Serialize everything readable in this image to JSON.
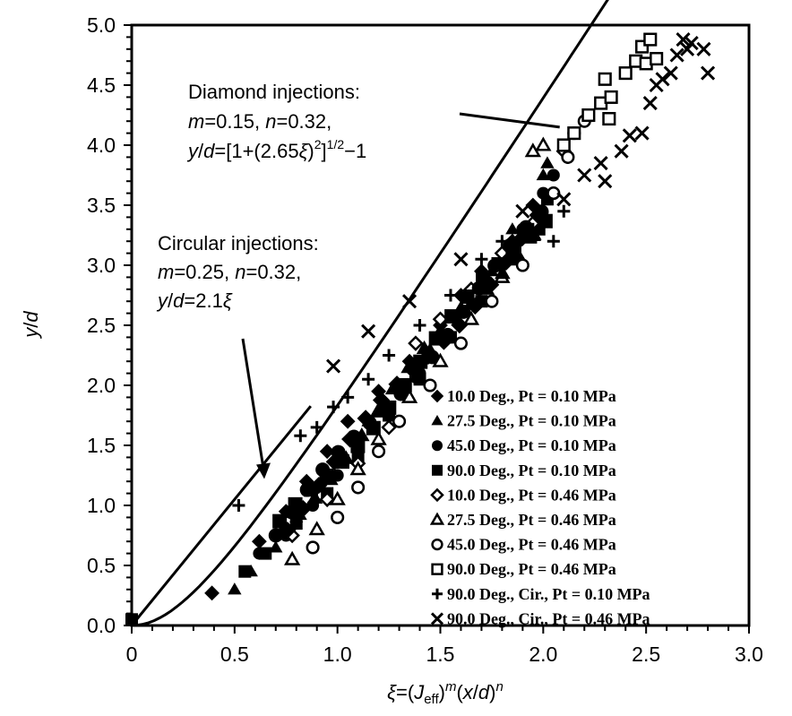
{
  "chart_data": {
    "type": "scatter",
    "title": "",
    "xlabel": "ξ=(J_eff)^m(x/d)^n",
    "xlabel_parts": {
      "prefix": "ξ=(",
      "J": "J",
      "sub": "eff",
      "mid": ")",
      "m": "m",
      "paren": "(x/d)",
      "n": "n"
    },
    "ylabel": "y/d",
    "xlim": [
      0,
      3.0
    ],
    "ylim": [
      0,
      5.0
    ],
    "x_ticks": [
      "0",
      "0.5",
      "1.0",
      "1.5",
      "2.0",
      "2.5",
      "3.0"
    ],
    "x_tick_values": [
      0,
      0.5,
      1.0,
      1.5,
      2.0,
      2.5,
      3.0
    ],
    "y_ticks": [
      "0.0",
      "0.5",
      "1.0",
      "1.5",
      "2.0",
      "2.5",
      "3.0",
      "3.5",
      "4.0",
      "4.5",
      "5.0"
    ],
    "y_tick_values": [
      0,
      0.5,
      1.0,
      1.5,
      2.0,
      2.5,
      3.0,
      3.5,
      4.0,
      4.5,
      5.0
    ],
    "grid": false,
    "legend_position": "bottom-right",
    "series": [
      {
        "name": "10.0 Deg., Pt = 0.10 MPa",
        "marker": "diamond-filled",
        "points": [
          [
            0.39,
            0.27
          ],
          [
            0.62,
            0.7
          ],
          [
            0.75,
            0.95
          ],
          [
            0.85,
            1.2
          ],
          [
            0.95,
            1.45
          ],
          [
            1.05,
            1.7
          ],
          [
            1.2,
            1.95
          ],
          [
            1.35,
            2.2
          ],
          [
            1.5,
            2.5
          ],
          [
            1.6,
            2.75
          ],
          [
            1.7,
            2.95
          ],
          [
            1.85,
            3.2
          ],
          [
            1.95,
            3.5
          ]
        ]
      },
      {
        "name": "27.5 Deg., Pt = 0.10 MPa",
        "marker": "triangle-filled",
        "points": [
          [
            0.5,
            0.3
          ],
          [
            0.58,
            0.45
          ],
          [
            0.7,
            0.65
          ],
          [
            0.8,
            0.9
          ],
          [
            0.9,
            1.15
          ],
          [
            1.0,
            1.4
          ],
          [
            1.15,
            1.7
          ],
          [
            1.3,
            2.0
          ],
          [
            1.45,
            2.3
          ],
          [
            1.6,
            2.65
          ],
          [
            1.75,
            2.95
          ],
          [
            1.85,
            3.3
          ],
          [
            2.0,
            3.75
          ],
          [
            2.02,
            3.85
          ]
        ]
      },
      {
        "name": "45.0 Deg., Pt = 0.10 MPa",
        "marker": "circle-filled",
        "points": [
          [
            0.62,
            0.6
          ],
          [
            0.75,
            0.75
          ],
          [
            0.88,
            1.0
          ],
          [
            1.0,
            1.25
          ],
          [
            1.1,
            1.5
          ],
          [
            1.25,
            1.8
          ],
          [
            1.4,
            2.1
          ],
          [
            1.55,
            2.4
          ],
          [
            1.7,
            2.7
          ],
          [
            1.8,
            3.0
          ],
          [
            1.9,
            3.3
          ],
          [
            2.0,
            3.6
          ],
          [
            2.05,
            3.75
          ]
        ]
      },
      {
        "name": "90.0 Deg., Pt = 0.10 MPa",
        "marker": "square-filled",
        "points": [
          [
            0.0,
            0.05
          ],
          [
            0.55,
            0.45
          ],
          [
            0.65,
            0.6
          ],
          [
            0.8,
            0.85
          ],
          [
            0.95,
            1.1
          ],
          [
            1.1,
            1.4
          ],
          [
            1.25,
            1.75
          ],
          [
            1.4,
            2.05
          ],
          [
            1.55,
            2.4
          ],
          [
            1.7,
            2.7
          ],
          [
            1.85,
            3.05
          ],
          [
            1.98,
            3.3
          ],
          [
            2.02,
            3.55
          ]
        ]
      },
      {
        "name": "10.0 Deg., Pt = 0.46 MPa",
        "marker": "diamond-open",
        "points": [
          [
            0.78,
            0.75
          ],
          [
            0.95,
            1.05
          ],
          [
            1.1,
            1.35
          ],
          [
            1.25,
            1.65
          ],
          [
            1.38,
            2.35
          ],
          [
            1.5,
            2.55
          ],
          [
            1.65,
            2.8
          ],
          [
            1.8,
            3.1
          ],
          [
            1.95,
            3.35
          ],
          [
            2.1,
            3.95
          ]
        ]
      },
      {
        "name": "27.5 Deg., Pt = 0.46 MPa",
        "marker": "triangle-open",
        "points": [
          [
            0.78,
            0.55
          ],
          [
            0.9,
            0.8
          ],
          [
            1.0,
            1.05
          ],
          [
            1.1,
            1.3
          ],
          [
            1.2,
            1.55
          ],
          [
            1.35,
            1.9
          ],
          [
            1.5,
            2.2
          ],
          [
            1.65,
            2.55
          ],
          [
            1.8,
            2.9
          ],
          [
            1.95,
            3.25
          ],
          [
            1.95,
            3.95
          ],
          [
            2.0,
            4.0
          ]
        ]
      },
      {
        "name": "45.0 Deg., Pt = 0.46 MPa",
        "marker": "circle-open",
        "points": [
          [
            0.88,
            0.65
          ],
          [
            1.0,
            0.9
          ],
          [
            1.1,
            1.15
          ],
          [
            1.2,
            1.45
          ],
          [
            1.3,
            1.7
          ],
          [
            1.45,
            2.0
          ],
          [
            1.6,
            2.35
          ],
          [
            1.75,
            2.7
          ],
          [
            1.9,
            3.0
          ],
          [
            2.05,
            3.6
          ],
          [
            2.12,
            3.9
          ],
          [
            2.15,
            4.1
          ],
          [
            2.2,
            4.2
          ]
        ]
      },
      {
        "name": "90.0 Deg., Pt = 0.46 MPa",
        "marker": "square-open",
        "points": [
          [
            1.85,
            3.15
          ],
          [
            2.1,
            4.0
          ],
          [
            2.15,
            4.1
          ],
          [
            2.22,
            4.25
          ],
          [
            2.28,
            4.35
          ],
          [
            2.33,
            4.4
          ],
          [
            2.3,
            4.55
          ],
          [
            2.4,
            4.6
          ],
          [
            2.45,
            4.7
          ],
          [
            2.5,
            4.68
          ],
          [
            2.55,
            4.72
          ],
          [
            2.48,
            4.82
          ],
          [
            2.52,
            4.88
          ],
          [
            2.32,
            4.22
          ]
        ]
      },
      {
        "name": "90.0 Deg., Cir., Pt = 0.10 MPa",
        "marker": "plus",
        "points": [
          [
            0.0,
            0.05
          ],
          [
            0.52,
            1.0
          ],
          [
            0.82,
            1.58
          ],
          [
            0.9,
            1.65
          ],
          [
            0.98,
            1.82
          ],
          [
            1.05,
            1.9
          ],
          [
            1.15,
            2.05
          ],
          [
            1.25,
            2.25
          ],
          [
            1.4,
            2.5
          ],
          [
            1.55,
            2.75
          ],
          [
            1.7,
            3.05
          ],
          [
            1.8,
            3.2
          ],
          [
            1.95,
            3.3
          ],
          [
            2.05,
            3.2
          ],
          [
            2.1,
            3.45
          ]
        ]
      },
      {
        "name": "90.0 Deg., Cir., Pt = 0.46 MPa",
        "marker": "x",
        "points": [
          [
            0.98,
            2.16
          ],
          [
            1.15,
            2.45
          ],
          [
            1.35,
            2.7
          ],
          [
            1.6,
            3.05
          ],
          [
            1.9,
            3.45
          ],
          [
            2.1,
            3.55
          ],
          [
            2.2,
            3.75
          ],
          [
            2.28,
            3.85
          ],
          [
            2.3,
            3.7
          ],
          [
            2.38,
            3.95
          ],
          [
            2.42,
            4.08
          ],
          [
            2.48,
            4.1
          ],
          [
            2.52,
            4.35
          ],
          [
            2.55,
            4.5
          ],
          [
            2.58,
            4.55
          ],
          [
            2.62,
            4.6
          ],
          [
            2.65,
            4.75
          ],
          [
            2.7,
            4.8
          ],
          [
            2.72,
            4.85
          ],
          [
            2.78,
            4.8
          ],
          [
            2.8,
            4.6
          ],
          [
            2.68,
            4.88
          ]
        ]
      }
    ],
    "fit_curves": [
      {
        "name": "Circular injections fit",
        "equation": "y/d=2.1ξ",
        "x_end": 0.87
      },
      {
        "name": "Diamond injections fit",
        "equation": "y/d=[1+(2.65ξ)^2]^(1/2)-1",
        "coef": 2.65,
        "x_end": 2.74
      }
    ],
    "annotations": [
      {
        "id": "diamond",
        "lines": [
          "Diamond injections:",
          "m=0.15, n=0.32,",
          "y/d=[1+(2.65ξ)²]^(1/2)−1"
        ],
        "line1": "Diamond injections:",
        "m": "m",
        "m_val": "=0.15, ",
        "n": "n",
        "n_val": "=0.32,",
        "eq_y": "y",
        "eq_slash": "/",
        "eq_d": "d",
        "eq_body": "=[1+(2.65",
        "eq_xi": "ξ",
        "eq_close": ")",
        "eq_sq": "2",
        "eq_br": "]",
        "eq_half": "1/2",
        "eq_tail": "−1",
        "points_to": [
          2.08,
          4.15
        ]
      },
      {
        "id": "circular",
        "lines": [
          "Circular injections:",
          "m=0.25, n=0.32,",
          "y/d=2.1ξ"
        ],
        "line1": "Circular injections:",
        "m": "m",
        "m_val": "=0.25, ",
        "n": "n",
        "n_val": "=0.32,",
        "eq_y": "y",
        "eq_slash": "/",
        "eq_d": "d",
        "eq_body": "=2.1",
        "eq_xi": "ξ",
        "points_to": [
          0.64,
          1.22
        ]
      }
    ]
  }
}
